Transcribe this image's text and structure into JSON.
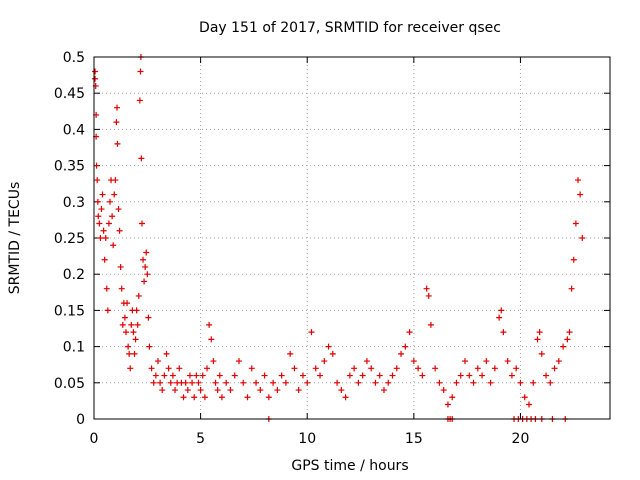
{
  "chart_data": {
    "type": "scatter",
    "title": "Day 151 of 2017, SRMTID for receiver qsec",
    "xlabel": "GPS time / hours",
    "ylabel": "SRMTID / TECUs",
    "xlim": [
      0,
      24.2
    ],
    "ylim": [
      0,
      0.5
    ],
    "xticks": [
      0,
      5,
      10,
      15,
      20
    ],
    "yticks": [
      0,
      0.05,
      0.1,
      0.15,
      0.2,
      0.25,
      0.3,
      0.35,
      0.4,
      0.45,
      0.5
    ],
    "xtick_labels": [
      "0",
      "5",
      "10",
      "15",
      "20"
    ],
    "ytick_labels": [
      "0",
      "0.05",
      "0.1",
      "0.15",
      "0.2",
      "0.25",
      "0.3",
      "0.35",
      "0.4",
      "0.45",
      "0.5"
    ],
    "grid": true,
    "marker": "+",
    "color": "#e00000",
    "series": [
      {
        "name": "SRMTID",
        "points": [
          [
            0.05,
            0.47
          ],
          [
            0.05,
            0.48
          ],
          [
            0.08,
            0.46
          ],
          [
            0.1,
            0.42
          ],
          [
            0.1,
            0.39
          ],
          [
            0.12,
            0.35
          ],
          [
            0.15,
            0.33
          ],
          [
            0.18,
            0.3
          ],
          [
            0.2,
            0.28
          ],
          [
            0.25,
            0.27
          ],
          [
            0.3,
            0.25
          ],
          [
            0.35,
            0.29
          ],
          [
            0.4,
            0.31
          ],
          [
            0.45,
            0.26
          ],
          [
            0.5,
            0.22
          ],
          [
            0.55,
            0.25
          ],
          [
            0.6,
            0.18
          ],
          [
            0.65,
            0.15
          ],
          [
            0.7,
            0.27
          ],
          [
            0.75,
            0.3
          ],
          [
            0.8,
            0.33
          ],
          [
            0.85,
            0.28
          ],
          [
            0.9,
            0.24
          ],
          [
            0.95,
            0.31
          ],
          [
            1.0,
            0.33
          ],
          [
            1.05,
            0.41
          ],
          [
            1.08,
            0.43
          ],
          [
            1.1,
            0.38
          ],
          [
            1.15,
            0.29
          ],
          [
            1.2,
            0.26
          ],
          [
            1.25,
            0.21
          ],
          [
            1.3,
            0.18
          ],
          [
            1.35,
            0.13
          ],
          [
            1.4,
            0.16
          ],
          [
            1.45,
            0.14
          ],
          [
            1.5,
            0.12
          ],
          [
            1.55,
            0.16
          ],
          [
            1.6,
            0.1
          ],
          [
            1.65,
            0.09
          ],
          [
            1.7,
            0.07
          ],
          [
            1.75,
            0.13
          ],
          [
            1.8,
            0.15
          ],
          [
            1.85,
            0.12
          ],
          [
            1.9,
            0.09
          ],
          [
            1.95,
            0.11
          ],
          [
            2.0,
            0.15
          ],
          [
            2.05,
            0.13
          ],
          [
            2.1,
            0.17
          ],
          [
            2.15,
            0.44
          ],
          [
            2.18,
            0.48
          ],
          [
            2.2,
            0.5
          ],
          [
            2.22,
            0.36
          ],
          [
            2.25,
            0.27
          ],
          [
            2.3,
            0.22
          ],
          [
            2.35,
            0.19
          ],
          [
            2.4,
            0.21
          ],
          [
            2.45,
            0.23
          ],
          [
            2.5,
            0.2
          ],
          [
            2.55,
            0.14
          ],
          [
            2.6,
            0.1
          ],
          [
            2.7,
            0.07
          ],
          [
            2.8,
            0.05
          ],
          [
            2.9,
            0.06
          ],
          [
            3.0,
            0.08
          ],
          [
            3.1,
            0.05
          ],
          [
            3.2,
            0.04
          ],
          [
            3.3,
            0.06
          ],
          [
            3.4,
            0.09
          ],
          [
            3.5,
            0.07
          ],
          [
            3.6,
            0.05
          ],
          [
            3.7,
            0.06
          ],
          [
            3.8,
            0.04
          ],
          [
            3.9,
            0.05
          ],
          [
            4.0,
            0.07
          ],
          [
            4.1,
            0.05
          ],
          [
            4.2,
            0.03
          ],
          [
            4.3,
            0.05
          ],
          [
            4.4,
            0.04
          ],
          [
            4.5,
            0.06
          ],
          [
            4.6,
            0.05
          ],
          [
            4.7,
            0.03
          ],
          [
            4.8,
            0.06
          ],
          [
            4.9,
            0.05
          ],
          [
            5.0,
            0.04
          ],
          [
            5.1,
            0.06
          ],
          [
            5.2,
            0.03
          ],
          [
            5.3,
            0.07
          ],
          [
            5.4,
            0.13
          ],
          [
            5.5,
            0.11
          ],
          [
            5.6,
            0.08
          ],
          [
            5.7,
            0.05
          ],
          [
            5.8,
            0.04
          ],
          [
            5.9,
            0.06
          ],
          [
            6.0,
            0.03
          ],
          [
            6.2,
            0.05
          ],
          [
            6.4,
            0.04
          ],
          [
            6.6,
            0.06
          ],
          [
            6.8,
            0.08
          ],
          [
            7.0,
            0.05
          ],
          [
            7.2,
            0.03
          ],
          [
            7.4,
            0.07
          ],
          [
            7.6,
            0.05
          ],
          [
            7.8,
            0.04
          ],
          [
            8.0,
            0.06
          ],
          [
            8.2,
            0.03
          ],
          [
            8.4,
            0.05
          ],
          [
            8.6,
            0.04
          ],
          [
            8.8,
            0.06
          ],
          [
            9.0,
            0.05
          ],
          [
            9.2,
            0.09
          ],
          [
            9.4,
            0.07
          ],
          [
            9.6,
            0.04
          ],
          [
            9.8,
            0.06
          ],
          [
            10.0,
            0.05
          ],
          [
            10.2,
            0.12
          ],
          [
            10.4,
            0.07
          ],
          [
            10.6,
            0.06
          ],
          [
            10.8,
            0.08
          ],
          [
            11.0,
            0.1
          ],
          [
            11.2,
            0.09
          ],
          [
            11.4,
            0.05
          ],
          [
            11.6,
            0.04
          ],
          [
            11.8,
            0.03
          ],
          [
            12.0,
            0.06
          ],
          [
            12.2,
            0.07
          ],
          [
            12.4,
            0.05
          ],
          [
            12.6,
            0.06
          ],
          [
            12.8,
            0.08
          ],
          [
            13.0,
            0.07
          ],
          [
            13.2,
            0.05
          ],
          [
            13.4,
            0.06
          ],
          [
            13.6,
            0.04
          ],
          [
            13.8,
            0.05
          ],
          [
            14.0,
            0.06
          ],
          [
            14.2,
            0.07
          ],
          [
            14.4,
            0.09
          ],
          [
            14.6,
            0.1
          ],
          [
            14.8,
            0.12
          ],
          [
            15.0,
            0.08
          ],
          [
            15.2,
            0.07
          ],
          [
            15.4,
            0.06
          ],
          [
            15.6,
            0.18
          ],
          [
            15.7,
            0.17
          ],
          [
            15.8,
            0.13
          ],
          [
            16.0,
            0.07
          ],
          [
            16.2,
            0.05
          ],
          [
            16.4,
            0.04
          ],
          [
            16.6,
            0.02
          ],
          [
            16.8,
            0.03
          ],
          [
            17.0,
            0.05
          ],
          [
            17.2,
            0.06
          ],
          [
            17.4,
            0.08
          ],
          [
            17.6,
            0.06
          ],
          [
            17.8,
            0.05
          ],
          [
            18.0,
            0.07
          ],
          [
            18.2,
            0.06
          ],
          [
            18.4,
            0.08
          ],
          [
            18.6,
            0.05
          ],
          [
            18.8,
            0.07
          ],
          [
            19.0,
            0.14
          ],
          [
            19.1,
            0.15
          ],
          [
            19.2,
            0.12
          ],
          [
            19.4,
            0.08
          ],
          [
            19.6,
            0.06
          ],
          [
            19.8,
            0.07
          ],
          [
            20.0,
            0.05
          ],
          [
            20.2,
            0.03
          ],
          [
            20.4,
            0.02
          ],
          [
            20.6,
            0.05
          ],
          [
            20.8,
            0.11
          ],
          [
            20.9,
            0.12
          ],
          [
            21.0,
            0.09
          ],
          [
            21.2,
            0.06
          ],
          [
            21.4,
            0.05
          ],
          [
            21.6,
            0.07
          ],
          [
            21.8,
            0.08
          ],
          [
            22.0,
            0.1
          ],
          [
            22.2,
            0.11
          ],
          [
            22.3,
            0.12
          ],
          [
            22.4,
            0.18
          ],
          [
            22.5,
            0.22
          ],
          [
            22.6,
            0.27
          ],
          [
            22.7,
            0.33
          ],
          [
            22.8,
            0.31
          ],
          [
            22.9,
            0.25
          ]
        ]
      }
    ],
    "zero_points_x": [
      8.2,
      16.6,
      16.7,
      16.8,
      19.7,
      19.9,
      20.1,
      20.3,
      20.5,
      20.7,
      21.0,
      21.5,
      22.1
    ]
  }
}
